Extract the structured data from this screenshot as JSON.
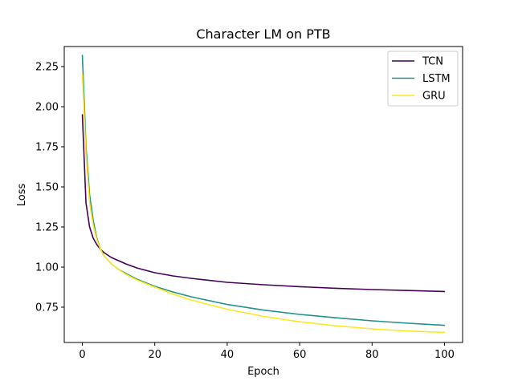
{
  "chart_data": {
    "type": "line",
    "title": "Character LM on PTB",
    "xlabel": "Epoch",
    "ylabel": "Loss",
    "xlim": [
      -5,
      105
    ],
    "ylim": [
      0.53,
      2.375
    ],
    "xticks": [
      0,
      20,
      40,
      60,
      80,
      100
    ],
    "yticks": [
      0.75,
      1.0,
      1.25,
      1.5,
      1.75,
      2.0,
      2.25
    ],
    "grid": false,
    "legend_position": "top-right",
    "x": [
      0,
      1,
      2,
      3,
      4,
      5,
      6,
      8,
      10,
      12,
      15,
      20,
      25,
      30,
      40,
      50,
      60,
      70,
      80,
      90,
      100
    ],
    "series": [
      {
        "name": "TCN",
        "color": "#440154",
        "values": [
          1.95,
          1.4,
          1.25,
          1.18,
          1.14,
          1.11,
          1.09,
          1.06,
          1.04,
          1.02,
          0.995,
          0.965,
          0.945,
          0.93,
          0.905,
          0.89,
          0.878,
          0.868,
          0.86,
          0.854,
          0.848
        ]
      },
      {
        "name": "LSTM",
        "color": "#21918c",
        "values": [
          2.32,
          1.75,
          1.45,
          1.29,
          1.18,
          1.11,
          1.07,
          1.02,
          0.985,
          0.96,
          0.925,
          0.88,
          0.845,
          0.815,
          0.767,
          0.732,
          0.705,
          0.684,
          0.665,
          0.65,
          0.637
        ]
      },
      {
        "name": "GRU",
        "color": "#fde725",
        "values": [
          2.2,
          1.7,
          1.4,
          1.26,
          1.17,
          1.11,
          1.07,
          1.02,
          0.985,
          0.955,
          0.92,
          0.875,
          0.832,
          0.795,
          0.737,
          0.693,
          0.659,
          0.634,
          0.615,
          0.601,
          0.593
        ]
      }
    ]
  }
}
